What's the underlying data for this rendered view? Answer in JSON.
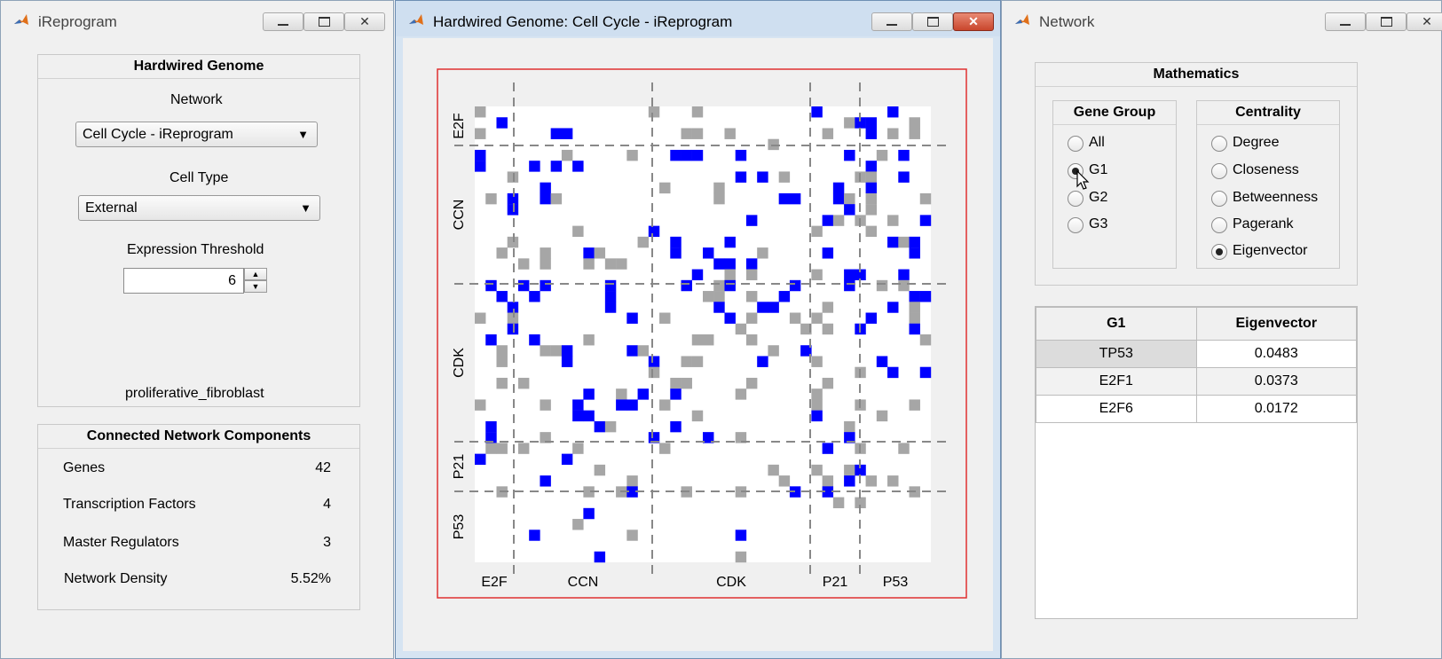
{
  "colors": {
    "matrix_blue": "#0000ff",
    "matrix_gray": "#a6a6a6",
    "plot_border": "#e03030",
    "active_close": "#c9462c"
  },
  "window1": {
    "title": "iReprogram",
    "hardwired": {
      "title": "Hardwired Genome",
      "network_label": "Network",
      "network_value": "Cell Cycle - iReprogram",
      "celltype_label": "Cell Type",
      "celltype_value": "External",
      "threshold_label": "Expression Threshold",
      "threshold_value": "6",
      "cell_name": "proliferative_fibroblast"
    },
    "components": {
      "title": "Connected Network Components",
      "rows": [
        {
          "label": "Genes",
          "value": "42"
        },
        {
          "label": "Transcription Factors",
          "value": "4"
        },
        {
          "label": "Master Regulators",
          "value": "3"
        },
        {
          "label": "Network Density",
          "value": "5.52%"
        }
      ]
    }
  },
  "window2": {
    "title": "Hardwired Genome: Cell Cycle - iReprogram",
    "groups": [
      "E2F",
      "CCN",
      "CDK",
      "P21",
      "P53"
    ]
  },
  "window3": {
    "title": "Network",
    "math_title": "Mathematics",
    "gene_group": {
      "title": "Gene Group",
      "options": [
        "All",
        "G1",
        "G2",
        "G3"
      ],
      "selected": "G1"
    },
    "centrality": {
      "title": "Centrality",
      "options": [
        "Degree",
        "Closeness",
        "Betweenness",
        "Pagerank",
        "Eigenvector"
      ],
      "selected": "Eigenvector"
    },
    "table": {
      "headers": [
        "G1",
        "Eigenvector"
      ],
      "rows": [
        [
          "TP53",
          "0.0483"
        ],
        [
          "E2F1",
          "0.0373"
        ],
        [
          "E2F6",
          "0.0172"
        ]
      ]
    }
  }
}
